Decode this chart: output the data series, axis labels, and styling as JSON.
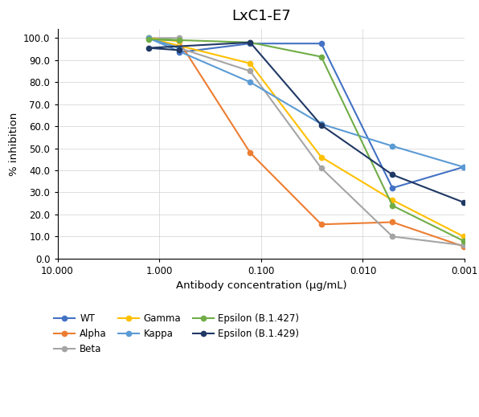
{
  "title": "LxC1-E7",
  "xlabel": "Antibody concentration (μg/mL)",
  "ylabel": "% inhibition",
  "xlim_left": 10.0,
  "xlim_right": 0.001,
  "ylim": [
    0.0,
    104.0
  ],
  "yticks": [
    0.0,
    10.0,
    20.0,
    30.0,
    40.0,
    50.0,
    60.0,
    70.0,
    80.0,
    90.0,
    100.0
  ],
  "xtick_positions": [
    10.0,
    1.0,
    0.1,
    0.01,
    0.001
  ],
  "xtick_labels": [
    "10.000",
    "1.000",
    "0.100",
    "0.010",
    "0.001"
  ],
  "series": {
    "WT": {
      "color": "#4472C4",
      "x": [
        0.64,
        0.128,
        0.0256,
        0.00512,
        0.001024
      ],
      "y": [
        93.5,
        97.5,
        97.5,
        32.0,
        41.5
      ]
    },
    "Alpha": {
      "color": "#ED7D31",
      "x": [
        0.64,
        0.128,
        0.0256,
        0.00512,
        0.001024
      ],
      "y": [
        98.5,
        48.0,
        15.5,
        16.5,
        5.5
      ]
    },
    "Beta": {
      "color": "#A5A5A5",
      "x": [
        0.64,
        1.28,
        0.128,
        0.0256,
        0.00512,
        0.001024
      ],
      "y": [
        100.0,
        100.0,
        85.0,
        41.0,
        10.0,
        6.0
      ]
    },
    "Gamma": {
      "color": "#FFC000",
      "x": [
        0.64,
        1.28,
        0.128,
        0.0256,
        0.00512,
        0.001024
      ],
      "y": [
        98.5,
        100.0,
        88.5,
        46.0,
        26.5,
        10.0
      ]
    },
    "Kappa": {
      "color": "#5B9BD5",
      "x": [
        0.64,
        1.28,
        0.128,
        0.0256,
        0.00512,
        0.001024
      ],
      "y": [
        95.5,
        100.0,
        80.0,
        61.0,
        51.0,
        41.5
      ]
    },
    "Epsilon (B.1.427)": {
      "color": "#70AD47",
      "x": [
        0.64,
        1.28,
        0.128,
        0.0256,
        0.00512,
        0.001024
      ],
      "y": [
        99.0,
        99.5,
        98.0,
        91.5,
        24.0,
        8.0
      ]
    },
    "Epsilon (B.1.429)": {
      "color": "#1F3864",
      "x": [
        0.64,
        1.28,
        0.128,
        0.0256,
        0.00512,
        0.001024
      ],
      "y": [
        94.5,
        95.5,
        98.0,
        60.5,
        38.0,
        25.5
      ]
    }
  },
  "legend_order": [
    "WT",
    "Alpha",
    "Beta",
    "Gamma",
    "Kappa",
    "Epsilon (B.1.427)",
    "Epsilon (B.1.429)"
  ]
}
